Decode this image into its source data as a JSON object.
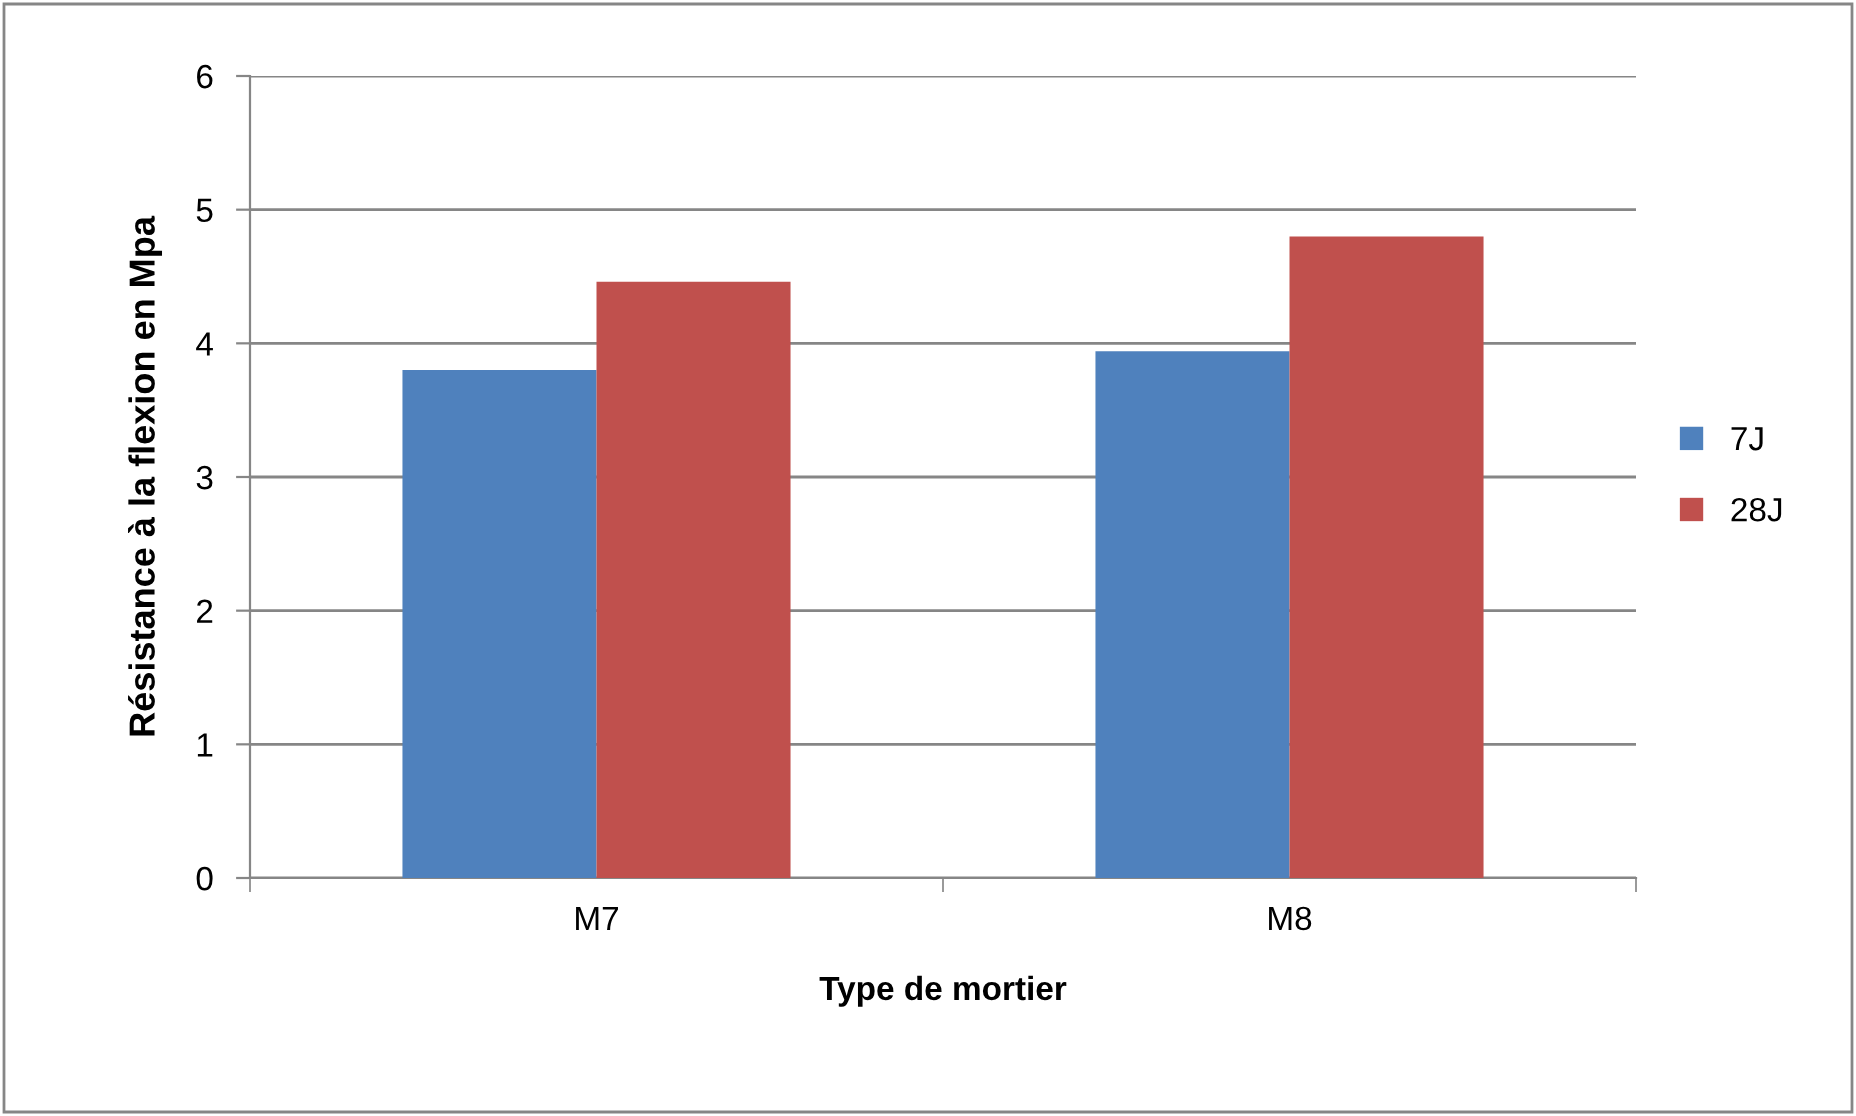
{
  "chart_data": {
    "type": "bar",
    "xlabel": "Type de mortier",
    "ylabel": "Résistance à la flexion en Mpa",
    "categories": [
      "M7",
      "M8"
    ],
    "series": [
      {
        "name": "7J",
        "color": "#4f81bd",
        "values": [
          3.8,
          3.94
        ]
      },
      {
        "name": "28J",
        "color": "#c0504d",
        "values": [
          4.46,
          4.8
        ]
      }
    ],
    "ylim": [
      0,
      6
    ],
    "yticks": [
      0,
      1,
      2,
      3,
      4,
      5,
      6
    ],
    "grid": "y",
    "legend": "right"
  }
}
